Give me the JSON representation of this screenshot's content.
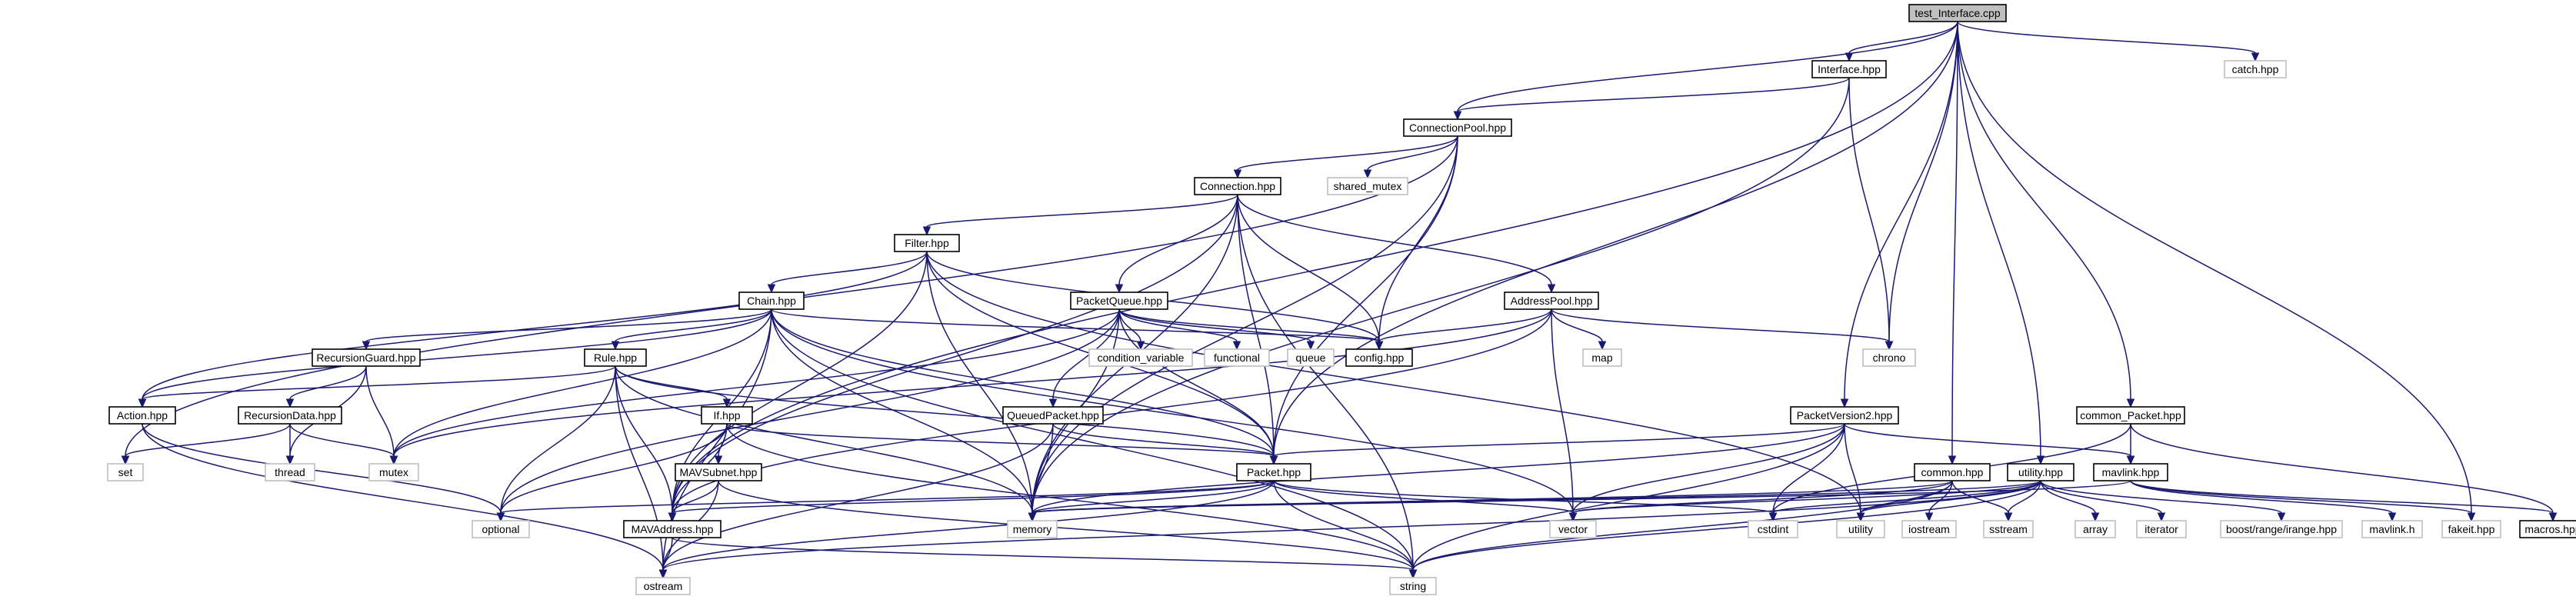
{
  "graph": {
    "root": "test_Interface.cpp",
    "nodes": [
      {
        "id": "test_Interface.cpp",
        "kind": "root"
      },
      {
        "id": "Interface.hpp",
        "kind": "internal"
      },
      {
        "id": "catch.hpp",
        "kind": "external"
      },
      {
        "id": "ConnectionPool.hpp",
        "kind": "internal"
      },
      {
        "id": "Connection.hpp",
        "kind": "internal"
      },
      {
        "id": "shared_mutex",
        "kind": "external"
      },
      {
        "id": "Filter.hpp",
        "kind": "internal"
      },
      {
        "id": "Chain.hpp",
        "kind": "internal"
      },
      {
        "id": "PacketQueue.hpp",
        "kind": "internal"
      },
      {
        "id": "AddressPool.hpp",
        "kind": "internal"
      },
      {
        "id": "RecursionGuard.hpp",
        "kind": "internal"
      },
      {
        "id": "Rule.hpp",
        "kind": "internal"
      },
      {
        "id": "condition_variable",
        "kind": "external"
      },
      {
        "id": "functional",
        "kind": "external"
      },
      {
        "id": "queue",
        "kind": "external"
      },
      {
        "id": "config.hpp",
        "kind": "internal"
      },
      {
        "id": "map",
        "kind": "external"
      },
      {
        "id": "chrono",
        "kind": "external"
      },
      {
        "id": "RecursionData.hpp",
        "kind": "internal"
      },
      {
        "id": "QueuedPacket.hpp",
        "kind": "internal"
      },
      {
        "id": "PacketVersion2.hpp",
        "kind": "internal"
      },
      {
        "id": "common_Packet.hpp",
        "kind": "internal"
      },
      {
        "id": "Action.hpp",
        "kind": "internal"
      },
      {
        "id": "If.hpp",
        "kind": "internal"
      },
      {
        "id": "set",
        "kind": "external"
      },
      {
        "id": "thread",
        "kind": "external"
      },
      {
        "id": "mutex",
        "kind": "external"
      },
      {
        "id": "Packet.hpp",
        "kind": "internal"
      },
      {
        "id": "MAVSubnet.hpp",
        "kind": "internal"
      },
      {
        "id": "common.hpp",
        "kind": "internal"
      },
      {
        "id": "utility.hpp",
        "kind": "internal"
      },
      {
        "id": "mavlink.hpp",
        "kind": "internal"
      },
      {
        "id": "optional",
        "kind": "external"
      },
      {
        "id": "MAVAddress.hpp",
        "kind": "internal"
      },
      {
        "id": "memory",
        "kind": "external"
      },
      {
        "id": "vector",
        "kind": "external"
      },
      {
        "id": "cstdint",
        "kind": "external"
      },
      {
        "id": "utility",
        "kind": "external"
      },
      {
        "id": "iostream",
        "kind": "external"
      },
      {
        "id": "sstream",
        "kind": "external"
      },
      {
        "id": "array",
        "kind": "external"
      },
      {
        "id": "iterator",
        "kind": "external"
      },
      {
        "id": "boost/range/irange.hpp",
        "kind": "external"
      },
      {
        "id": "mavlink.h",
        "kind": "external"
      },
      {
        "id": "fakeit.hpp",
        "kind": "external"
      },
      {
        "id": "macros.hpp",
        "kind": "internal"
      },
      {
        "id": "ostream",
        "kind": "external"
      },
      {
        "id": "string",
        "kind": "external"
      }
    ],
    "edges": [
      [
        "test_Interface.cpp",
        "Interface.hpp"
      ],
      [
        "test_Interface.cpp",
        "catch.hpp"
      ],
      [
        "test_Interface.cpp",
        "ConnectionPool.hpp"
      ],
      [
        "test_Interface.cpp",
        "chrono"
      ],
      [
        "test_Interface.cpp",
        "Packet.hpp"
      ],
      [
        "test_Interface.cpp",
        "PacketVersion2.hpp"
      ],
      [
        "test_Interface.cpp",
        "common.hpp"
      ],
      [
        "test_Interface.cpp",
        "utility.hpp"
      ],
      [
        "test_Interface.cpp",
        "common_Packet.hpp"
      ],
      [
        "test_Interface.cpp",
        "fakeit.hpp"
      ],
      [
        "test_Interface.cpp",
        "MAVAddress.hpp"
      ],
      [
        "Interface.hpp",
        "ConnectionPool.hpp"
      ],
      [
        "Interface.hpp",
        "chrono"
      ],
      [
        "Interface.hpp",
        "memory"
      ],
      [
        "ConnectionPool.hpp",
        "Connection.hpp"
      ],
      [
        "ConnectionPool.hpp",
        "shared_mutex"
      ],
      [
        "ConnectionPool.hpp",
        "config.hpp"
      ],
      [
        "ConnectionPool.hpp",
        "Packet.hpp"
      ],
      [
        "ConnectionPool.hpp",
        "memory"
      ],
      [
        "ConnectionPool.hpp",
        "set"
      ],
      [
        "Connection.hpp",
        "Filter.hpp"
      ],
      [
        "Connection.hpp",
        "PacketQueue.hpp"
      ],
      [
        "Connection.hpp",
        "AddressPool.hpp"
      ],
      [
        "Connection.hpp",
        "config.hpp"
      ],
      [
        "Connection.hpp",
        "Packet.hpp"
      ],
      [
        "Connection.hpp",
        "memory"
      ],
      [
        "Connection.hpp",
        "string"
      ],
      [
        "Connection.hpp",
        "MAVAddress.hpp"
      ],
      [
        "Filter.hpp",
        "Chain.hpp"
      ],
      [
        "Filter.hpp",
        "Action.hpp"
      ],
      [
        "Filter.hpp",
        "config.hpp"
      ],
      [
        "Filter.hpp",
        "Packet.hpp"
      ],
      [
        "Filter.hpp",
        "memory"
      ],
      [
        "Filter.hpp",
        "utility"
      ],
      [
        "Filter.hpp",
        "MAVAddress.hpp"
      ],
      [
        "Chain.hpp",
        "RecursionGuard.hpp"
      ],
      [
        "Chain.hpp",
        "Rule.hpp"
      ],
      [
        "Chain.hpp",
        "Action.hpp"
      ],
      [
        "Chain.hpp",
        "config.hpp"
      ],
      [
        "Chain.hpp",
        "Packet.hpp"
      ],
      [
        "Chain.hpp",
        "MAVAddress.hpp"
      ],
      [
        "Chain.hpp",
        "memory"
      ],
      [
        "Chain.hpp",
        "mutex"
      ],
      [
        "Chain.hpp",
        "string"
      ],
      [
        "Chain.hpp",
        "vector"
      ],
      [
        "Chain.hpp",
        "ostream"
      ],
      [
        "PacketQueue.hpp",
        "condition_variable"
      ],
      [
        "PacketQueue.hpp",
        "functional"
      ],
      [
        "PacketQueue.hpp",
        "queue"
      ],
      [
        "PacketQueue.hpp",
        "config.hpp"
      ],
      [
        "PacketQueue.hpp",
        "QueuedPacket.hpp"
      ],
      [
        "PacketQueue.hpp",
        "Packet.hpp"
      ],
      [
        "PacketQueue.hpp",
        "memory"
      ],
      [
        "PacketQueue.hpp",
        "mutex"
      ],
      [
        "PacketQueue.hpp",
        "optional"
      ],
      [
        "AddressPool.hpp",
        "config.hpp"
      ],
      [
        "AddressPool.hpp",
        "map"
      ],
      [
        "AddressPool.hpp",
        "chrono"
      ],
      [
        "AddressPool.hpp",
        "vector"
      ],
      [
        "AddressPool.hpp",
        "mutex"
      ],
      [
        "AddressPool.hpp",
        "MAVAddress.hpp"
      ],
      [
        "RecursionGuard.hpp",
        "RecursionData.hpp"
      ],
      [
        "RecursionGuard.hpp",
        "mutex"
      ],
      [
        "RecursionGuard.hpp",
        "thread"
      ],
      [
        "RecursionData.hpp",
        "set"
      ],
      [
        "RecursionData.hpp",
        "thread"
      ],
      [
        "RecursionData.hpp",
        "mutex"
      ],
      [
        "Rule.hpp",
        "Action.hpp"
      ],
      [
        "Rule.hpp",
        "If.hpp"
      ],
      [
        "Rule.hpp",
        "Packet.hpp"
      ],
      [
        "Rule.hpp",
        "MAVAddress.hpp"
      ],
      [
        "Rule.hpp",
        "memory"
      ],
      [
        "Rule.hpp",
        "optional"
      ],
      [
        "Rule.hpp",
        "ostream"
      ],
      [
        "Action.hpp",
        "optional"
      ],
      [
        "Action.hpp",
        "ostream"
      ],
      [
        "If.hpp",
        "MAVSubnet.hpp"
      ],
      [
        "If.hpp",
        "Packet.hpp"
      ],
      [
        "If.hpp",
        "MAVAddress.hpp"
      ],
      [
        "If.hpp",
        "optional"
      ],
      [
        "If.hpp",
        "string"
      ],
      [
        "MAVSubnet.hpp",
        "MAVAddress.hpp"
      ],
      [
        "MAVSubnet.hpp",
        "ostream"
      ],
      [
        "MAVSubnet.hpp",
        "string"
      ],
      [
        "QueuedPacket.hpp",
        "Packet.hpp"
      ],
      [
        "QueuedPacket.hpp",
        "memory"
      ],
      [
        "QueuedPacket.hpp",
        "ostream"
      ],
      [
        "Packet.hpp",
        "MAVAddress.hpp"
      ],
      [
        "Packet.hpp",
        "memory"
      ],
      [
        "Packet.hpp",
        "optional"
      ],
      [
        "Packet.hpp",
        "vector"
      ],
      [
        "Packet.hpp",
        "cstdint"
      ],
      [
        "Packet.hpp",
        "string"
      ],
      [
        "Packet.hpp",
        "ostream"
      ],
      [
        "MAVAddress.hpp",
        "ostream"
      ],
      [
        "MAVAddress.hpp",
        "string"
      ],
      [
        "PacketVersion2.hpp",
        "Packet.hpp"
      ],
      [
        "PacketVersion2.hpp",
        "mavlink.hpp"
      ],
      [
        "PacketVersion2.hpp",
        "memory"
      ],
      [
        "PacketVersion2.hpp",
        "vector"
      ],
      [
        "PacketVersion2.hpp",
        "cstdint"
      ],
      [
        "PacketVersion2.hpp",
        "string"
      ],
      [
        "PacketVersion2.hpp",
        "utility"
      ],
      [
        "common_Packet.hpp",
        "mavlink.hpp"
      ],
      [
        "common_Packet.hpp",
        "macros.hpp"
      ],
      [
        "common_Packet.hpp",
        "cstdint"
      ],
      [
        "mavlink.hpp",
        "mavlink.h"
      ],
      [
        "mavlink.hpp",
        "fakeit.hpp"
      ],
      [
        "mavlink.hpp",
        "macros.hpp"
      ],
      [
        "mavlink.hpp",
        "memory"
      ],
      [
        "common.hpp",
        "memory"
      ],
      [
        "common.hpp",
        "utility"
      ],
      [
        "common.hpp",
        "iostream"
      ],
      [
        "common.hpp",
        "sstream"
      ],
      [
        "common.hpp",
        "string"
      ],
      [
        "common.hpp",
        "vector"
      ],
      [
        "utility.hpp",
        "array"
      ],
      [
        "utility.hpp",
        "iterator"
      ],
      [
        "utility.hpp",
        "boost/range/irange.hpp"
      ],
      [
        "utility.hpp",
        "sstream"
      ],
      [
        "utility.hpp",
        "utility"
      ],
      [
        "utility.hpp",
        "vector"
      ],
      [
        "utility.hpp",
        "cstdint"
      ],
      [
        "utility.hpp",
        "memory"
      ],
      [
        "utility.hpp",
        "ostream"
      ],
      [
        "utility.hpp",
        "string"
      ]
    ]
  },
  "colors": {
    "edge": "#191970",
    "root_fill": "#bfbfbf",
    "internal_border": "#000000",
    "external_border": "#bfbfbf",
    "background": "#ffffff"
  }
}
